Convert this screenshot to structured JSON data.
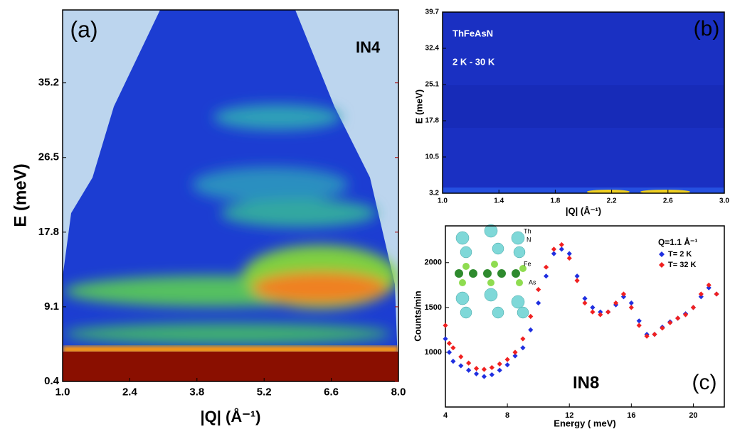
{
  "chart_data": [
    {
      "type": "heatmap",
      "panel_label": "(a)",
      "annotations": [
        "IN4"
      ],
      "x_label": "|Q| (Å⁻¹)",
      "y_label": "E (meV)",
      "xlim": [
        1.0,
        8.0
      ],
      "xticks": [
        {
          "value": 1.0,
          "label": "1.0"
        },
        2.4,
        3.8,
        5.2,
        6.6,
        {
          "value": 8.0,
          "label": "8.0"
        }
      ],
      "ylim": [
        0.4,
        43.7
      ],
      "yticks": [
        0.4,
        9.1,
        17.8,
        26.5,
        35.2
      ]
    },
    {
      "type": "heatmap",
      "panel_label": "(b)",
      "annotations": [
        "ThFeAsN",
        "2 K - 30 K"
      ],
      "x_label": "|Q| (Å⁻¹)",
      "y_label": "E (meV)",
      "xlim": [
        1.0,
        3.0
      ],
      "xticks": [
        {
          "value": 1.0,
          "label": "1.0"
        },
        1.4,
        1.8,
        2.2,
        2.6,
        {
          "value": 3.0,
          "label": "3.0"
        }
      ],
      "ylim": [
        3.2,
        39.7
      ],
      "yticks": [
        3.2,
        10.5,
        17.8,
        25.1,
        32.4,
        39.7
      ]
    },
    {
      "type": "scatter",
      "panel_label": "(c)",
      "annotations": [
        "IN8",
        "Q=1.1 Å⁻¹",
        "Th",
        "N",
        "Fe",
        "As"
      ],
      "x_label": "Energy ( meV)",
      "y_label": "Counts/min",
      "xlim": [
        4,
        22
      ],
      "xticks": [
        4,
        8,
        12,
        16,
        20
      ],
      "ylim": [
        390,
        2410
      ],
      "yticks": [
        1000,
        1500,
        2000
      ],
      "x": [
        4,
        4.25,
        4.5,
        5,
        5.5,
        6,
        6.5,
        7,
        7.5,
        8,
        8.5,
        9,
        9.5,
        10,
        10.5,
        11,
        11.5,
        12,
        12.5,
        13,
        13.5,
        14,
        14.5,
        15,
        15.5,
        16,
        16.5,
        17,
        17.5,
        18,
        18.5,
        19,
        19.5,
        20,
        20.5,
        21,
        21.5
      ],
      "series": [
        {
          "name": "T= 2 K",
          "color": "#1f2fe0",
          "values": [
            1150,
            1000,
            900,
            850,
            800,
            760,
            730,
            750,
            800,
            860,
            960,
            1050,
            1250,
            1550,
            1850,
            2100,
            2150,
            2100,
            1850,
            1600,
            1500,
            1450,
            1450,
            1530,
            1620,
            1550,
            1350,
            1200,
            1200,
            1280,
            1340,
            1380,
            1430,
            1500,
            1620,
            1720,
            1650
          ]
        },
        {
          "name": "T= 32 K",
          "color": "#f02020",
          "values": [
            1300,
            1100,
            1050,
            950,
            880,
            820,
            810,
            830,
            870,
            920,
            1000,
            1150,
            1400,
            1700,
            1950,
            2150,
            2200,
            2050,
            1800,
            1550,
            1450,
            1420,
            1450,
            1550,
            1650,
            1500,
            1300,
            1180,
            1200,
            1270,
            1330,
            1380,
            1420,
            1500,
            1650,
            1750,
            1650
          ]
        }
      ]
    }
  ]
}
